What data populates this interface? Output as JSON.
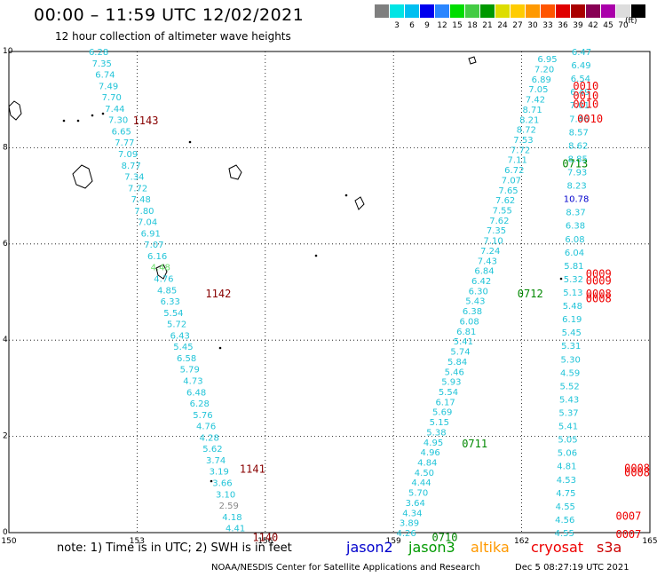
{
  "header": {
    "title": "00:00 – 11:59 UTC 12/02/2021",
    "subtitle": "12 hour collection of altimeter wave heights"
  },
  "colorbar": {
    "colors": [
      "#7f7f7f",
      "#00e5e5",
      "#00bff0",
      "#0000ee",
      "#2a86ff",
      "#00dd00",
      "#44cc44",
      "#009900",
      "#dddd00",
      "#ffcc00",
      "#ff9900",
      "#ff5500",
      "#e00000",
      "#aa0000",
      "#880055",
      "#aa00aa",
      "#dddddd",
      "#000000"
    ],
    "labels": [
      "3",
      "6",
      "9",
      "12",
      "15",
      "18",
      "21",
      "24",
      "27",
      "30",
      "33",
      "36",
      "39",
      "42",
      "45",
      "70"
    ],
    "unit": "(ft)"
  },
  "axes": {
    "x_ticks": [
      "150",
      "153",
      "156",
      "159",
      "162",
      "165"
    ],
    "y_ticks": [
      "0",
      "2",
      "4",
      "6",
      "8",
      "10"
    ]
  },
  "track_times": {
    "west": [
      {
        "text": "1143",
        "color": "#880000",
        "lon": 152.9,
        "lat": 8.58
      },
      {
        "text": "1142",
        "color": "#880000",
        "lon": 154.6,
        "lat": 4.98
      },
      {
        "text": "1141",
        "color": "#880000",
        "lon": 155.4,
        "lat": 1.34
      },
      {
        "text": "1140",
        "color": "#880000",
        "lon": 155.7,
        "lat": -0.08
      }
    ],
    "mid": [
      {
        "text": "0713",
        "color": "#008800",
        "lon": 162.95,
        "lat": 7.68
      },
      {
        "text": "0712",
        "color": "#008800",
        "lon": 161.9,
        "lat": 4.98
      },
      {
        "text": "0711",
        "color": "#008800",
        "lon": 160.6,
        "lat": 1.86
      },
      {
        "text": "0710",
        "color": "#008800",
        "lon": 159.9,
        "lat": -0.08
      }
    ],
    "east": [
      {
        "text": "0010",
        "color": "#ee0000",
        "lon": 163.2,
        "lat": 9.3
      },
      {
        "text": "0010",
        "color": "#ee0000",
        "lon": 163.2,
        "lat": 9.1
      },
      {
        "text": "0010",
        "color": "#ee0000",
        "lon": 163.2,
        "lat": 8.92
      },
      {
        "text": "0010",
        "color": "#ee0000",
        "lon": 163.3,
        "lat": 8.62
      },
      {
        "text": "0009",
        "color": "#ee0000",
        "lon": 163.5,
        "lat": 5.4
      },
      {
        "text": "0009",
        "color": "#ee0000",
        "lon": 163.5,
        "lat": 5.25
      },
      {
        "text": "0008",
        "color": "#ee0000",
        "lon": 163.5,
        "lat": 4.98
      },
      {
        "text": "0008",
        "color": "#ee0000",
        "lon": 163.5,
        "lat": 4.88
      },
      {
        "text": "0008",
        "color": "#ee0000",
        "lon": 164.4,
        "lat": 1.36
      },
      {
        "text": "0008",
        "color": "#ee0000",
        "lon": 164.4,
        "lat": 1.26
      },
      {
        "text": "0007",
        "color": "#ee0000",
        "lon": 164.2,
        "lat": 0.36
      },
      {
        "text": "0007",
        "color": "#ee0000",
        "lon": 164.2,
        "lat": -0.02
      }
    ]
  },
  "tracks": {
    "west": {
      "color": "#22c4d8",
      "values": [
        "6.28",
        "7.35",
        "6.74",
        "7.49",
        "7.70",
        "7.44",
        "7.30",
        "6.65",
        "7.77",
        "7.09",
        "8.77",
        "7.34",
        "7.72",
        "7.48",
        "7.80",
        "7.04",
        "6.91",
        "7.07",
        "6.16",
        "4.48",
        "4.76",
        "4.85",
        "6.33",
        "5.54",
        "5.72",
        "6.43",
        "5.45",
        "6.58",
        "5.79",
        "4.73",
        "6.48",
        "6.28",
        "5.76",
        "4.76",
        "4.28",
        "5.62",
        "3.74",
        "3.19",
        "3.66",
        "3.10",
        "2.59",
        "4.18",
        "4.41"
      ],
      "start": [
        152.1,
        10.0
      ],
      "end": [
        155.3,
        0.1
      ]
    },
    "mid": {
      "color": "#22c4d8",
      "values": [
        "6.95",
        "7.20",
        "6.89",
        "7.05",
        "7.42",
        "8.71",
        "8.21",
        "8.72",
        "7.53",
        "7.72",
        "7.11",
        "6.72",
        "7.07",
        "7.65",
        "7.62",
        "7.55",
        "7.62",
        "7.35",
        "7.10",
        "7.24",
        "7.43",
        "6.84",
        "6.42",
        "6.30",
        "5.43",
        "6.38",
        "6.08",
        "6.81",
        "5.41",
        "5.74",
        "5.84",
        "5.46",
        "5.93",
        "5.54",
        "6.17",
        "5.69",
        "5.15",
        "5.38",
        "4.95",
        "4.96",
        "4.84",
        "4.50",
        "4.44",
        "5.70",
        "3.64",
        "4.34",
        "3.89",
        "4.26"
      ],
      "start": [
        162.6,
        9.85
      ],
      "end": [
        159.3,
        0.0
      ]
    },
    "east": {
      "color": "#22c4d8",
      "values": [
        "6.47",
        "6.49",
        "6.54",
        "6.49",
        "7.01",
        "7.46",
        "8.57",
        "8.62",
        "8.85",
        "7.93",
        "8.23",
        "10.78",
        "8.37",
        "6.38",
        "6.08",
        "6.04",
        "5.81",
        "5.32",
        "5.13",
        "5.48",
        "6.19",
        "5.45",
        "5.31",
        "5.30",
        "4.59",
        "5.52",
        "5.43",
        "5.37",
        "5.41",
        "5.05",
        "5.06",
        "4.81",
        "4.53",
        "4.75",
        "4.55",
        "4.56",
        "4.55"
      ],
      "start": [
        163.4,
        10.0
      ],
      "end": [
        163.0,
        0.0
      ]
    }
  },
  "footer": {
    "note": "note: 1) Time is in UTC; 2) SWH is in feet",
    "satellites": [
      {
        "name": "jason2",
        "color": "#0000cc"
      },
      {
        "name": "jason3",
        "color": "#009900"
      },
      {
        "name": "altika",
        "color": "#ff9900"
      },
      {
        "name": "cryosat",
        "color": "#ee0000"
      },
      {
        "name": "s3a",
        "color": "#cc0000"
      }
    ],
    "credit": "NOAA/NESDIS Center for Satellite Applications and Research",
    "timestamp": "Dec  5 08:27:19 UTC 2021"
  }
}
